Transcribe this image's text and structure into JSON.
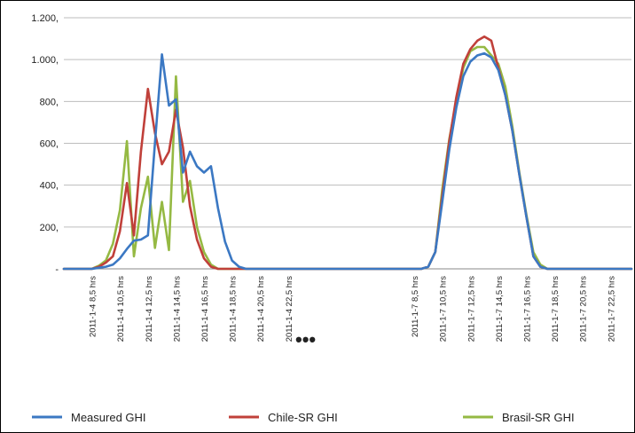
{
  "chart_data": {
    "type": "line",
    "yticks": [
      "1.200,",
      "1.000,",
      "800,",
      "600,",
      "400,",
      "200,",
      "-"
    ],
    "ylim": [
      0,
      1200
    ],
    "grid": true,
    "legend_position": "bottom",
    "break_marker": "•••",
    "x_labels_day1": [
      "2011-1-4  8,5 hrs",
      "2011-1-4  10,5 hrs",
      "2011-1-4  12,5 hrs",
      "2011-1-4  14,5 hrs",
      "2011-1-4  16,5 hrs",
      "2011-1-4  18,5 hrs",
      "2011-1-4  20,5 hrs",
      "2011-1-4  22,5 hrs"
    ],
    "x_labels_day2": [
      "2011-1-7  8,5 hrs",
      "2011-1-7  10,5 hrs",
      "2011-1-7  12,5 hrs",
      "2011-1-7  14,5 hrs",
      "2011-1-7  16,5 hrs",
      "2011-1-7  18,5 hrs",
      "2011-1-7  20,5 hrs",
      "2011-1-7  22,5 hrs"
    ],
    "day1_hours": [
      6.5,
      7,
      7.5,
      8,
      8.5,
      9,
      9.5,
      10,
      10.5,
      11,
      11.5,
      12,
      12.5,
      13,
      13.5,
      14,
      14.5,
      15,
      15.5,
      16,
      16.5,
      17,
      17.5,
      18,
      18.5,
      19,
      19.5,
      20,
      20.5,
      21,
      21.5,
      22,
      22.5,
      23,
      23.5,
      24
    ],
    "gap_hours": [
      24.5,
      25,
      25.5,
      26,
      26.5,
      27,
      27.5,
      28,
      28.5,
      29
    ],
    "day2_hours": [
      6.5,
      7,
      7.5,
      8,
      8.5,
      9,
      9.5,
      10,
      10.5,
      11,
      11.5,
      12,
      12.5,
      13,
      13.5,
      14,
      14.5,
      15,
      15.5,
      16,
      16.5,
      17,
      17.5,
      18,
      18.5,
      19,
      19.5,
      20,
      20.5,
      21,
      21.5,
      22,
      22.5,
      23,
      23.5,
      24
    ],
    "series": [
      {
        "name": "Measured GHI",
        "color": "#3b78c3",
        "day1": [
          0,
          0,
          0,
          0,
          0,
          5,
          10,
          20,
          50,
          95,
          135,
          140,
          160,
          600,
          1025,
          780,
          810,
          460,
          560,
          490,
          460,
          490,
          290,
          130,
          40,
          10,
          0,
          0,
          0,
          0,
          0,
          0,
          0,
          0,
          0,
          0
        ],
        "gap": [
          0,
          0,
          0,
          0,
          0,
          0,
          0,
          0,
          0,
          0
        ],
        "day2": [
          0,
          0,
          0,
          0,
          0,
          0,
          10,
          80,
          320,
          570,
          770,
          920,
          990,
          1020,
          1030,
          1010,
          950,
          830,
          660,
          450,
          250,
          60,
          10,
          0,
          0,
          0,
          0,
          0,
          0,
          0,
          0,
          0,
          0,
          0,
          0,
          0
        ]
      },
      {
        "name": "Chile-SR GHI",
        "color": "#c0403a",
        "day1": [
          0,
          0,
          0,
          0,
          0,
          10,
          30,
          60,
          180,
          410,
          160,
          560,
          860,
          650,
          500,
          560,
          760,
          580,
          300,
          140,
          50,
          10,
          0,
          0,
          0,
          0,
          0,
          0,
          0,
          0,
          0,
          0,
          0,
          0,
          0,
          0
        ],
        "gap": [
          0,
          0,
          0,
          0,
          0,
          0,
          0,
          0,
          0,
          0
        ],
        "day2": [
          0,
          0,
          0,
          0,
          0,
          0,
          10,
          80,
          350,
          610,
          820,
          980,
          1050,
          1090,
          1110,
          1090,
          960,
          830,
          660,
          450,
          250,
          60,
          10,
          0,
          0,
          0,
          0,
          0,
          0,
          0,
          0,
          0,
          0,
          0,
          0,
          0
        ]
      },
      {
        "name": "Brasil-SR GHI",
        "color": "#95b943",
        "day1": [
          0,
          0,
          0,
          0,
          0,
          15,
          40,
          120,
          280,
          610,
          60,
          290,
          440,
          100,
          320,
          90,
          920,
          320,
          420,
          200,
          80,
          20,
          0,
          0,
          0,
          0,
          0,
          0,
          0,
          0,
          0,
          0,
          0,
          0,
          0,
          0
        ],
        "gap": [
          0,
          0,
          0,
          0,
          0,
          0,
          0,
          0,
          0,
          0
        ],
        "day2": [
          0,
          0,
          0,
          0,
          0,
          0,
          10,
          80,
          380,
          620,
          800,
          960,
          1040,
          1060,
          1060,
          1020,
          980,
          870,
          680,
          460,
          260,
          80,
          20,
          0,
          0,
          0,
          0,
          0,
          0,
          0,
          0,
          0,
          0,
          0,
          0,
          0
        ]
      }
    ]
  }
}
